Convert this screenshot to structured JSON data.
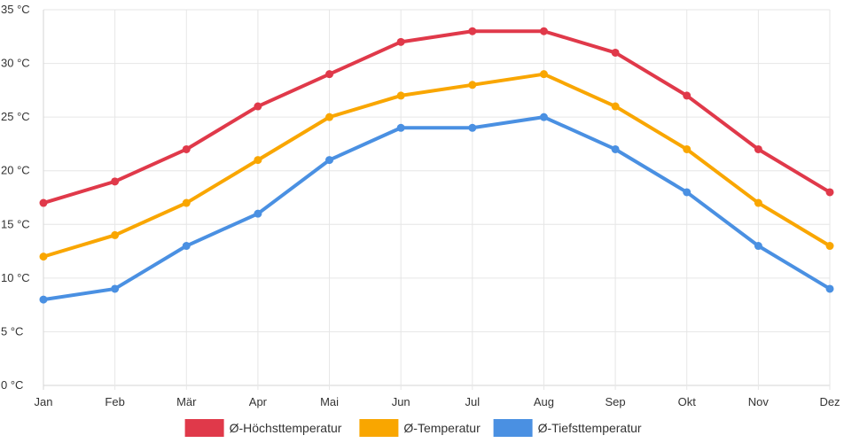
{
  "chart_data": {
    "type": "line",
    "title": "",
    "xlabel": "",
    "ylabel": "",
    "categories": [
      "Jan",
      "Feb",
      "Mär",
      "Apr",
      "Mai",
      "Jun",
      "Jul",
      "Aug",
      "Sep",
      "Okt",
      "Nov",
      "Dez"
    ],
    "ylim": [
      0,
      35
    ],
    "y_ticks": [
      0,
      5,
      10,
      15,
      20,
      25,
      30,
      35
    ],
    "y_tick_labels": [
      "0 °C",
      "5 °C",
      "10 °C",
      "15 °C",
      "20 °C",
      "25 °C",
      "30 °C",
      "35 °C"
    ],
    "grid": true,
    "legend_position": "bottom",
    "series": [
      {
        "name": "Ø-Höchsttemperatur",
        "color": "#e0394a",
        "values": [
          17,
          19,
          22,
          26,
          29,
          32,
          33,
          33,
          31,
          27,
          22,
          18
        ]
      },
      {
        "name": "Ø-Temperatur",
        "color": "#f9a600",
        "values": [
          12,
          14,
          17,
          21,
          25,
          27,
          28,
          29,
          26,
          22,
          17,
          13
        ]
      },
      {
        "name": "Ø-Tiefsttemperatur",
        "color": "#4a90e2",
        "values": [
          8,
          9,
          13,
          16,
          21,
          24,
          24,
          25,
          22,
          18,
          13,
          9
        ]
      }
    ]
  }
}
